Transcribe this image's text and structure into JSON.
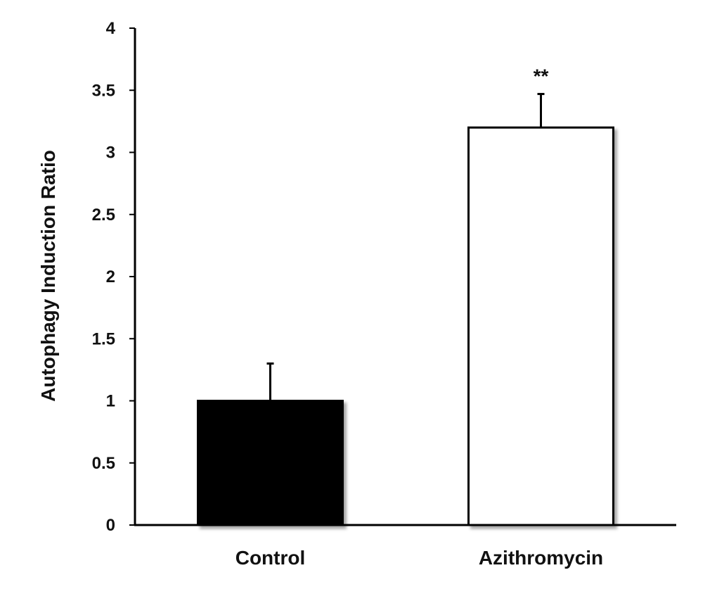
{
  "chart_data": {
    "type": "bar",
    "title": "",
    "xlabel": "",
    "ylabel": "Autophagy Induction Ratio",
    "categories": [
      "Control",
      "Azithromycin"
    ],
    "values": [
      1.0,
      3.2
    ],
    "error": [
      0.3,
      0.27
    ],
    "bar_colors": [
      "#000000",
      "#ffffff"
    ],
    "annotations": [
      "",
      "**"
    ],
    "ylim": [
      0,
      4
    ],
    "yticks": [
      0,
      0.5,
      1,
      1.5,
      2,
      2.5,
      3,
      3.5,
      4
    ],
    "grid": false,
    "legend": "none"
  }
}
